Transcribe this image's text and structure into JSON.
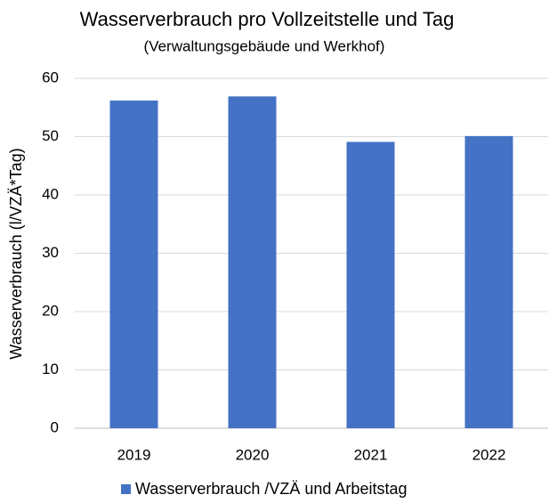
{
  "chart_data": {
    "type": "bar",
    "title": "Wasserverbrauch pro Vollzeitstelle und Tag",
    "subtitle": "(Verwaltungsgebäude und Werkhof)",
    "y_label": "Wasserverbrauch (l/VZÄ*Tag)",
    "categories": [
      "2019",
      "2020",
      "2021",
      "2022"
    ],
    "series": [
      {
        "name": "Wasserverbrauch /VZÄ und Arbeitstag",
        "color": "#4472c4",
        "values": [
          56.2,
          56.9,
          49.1,
          50.1
        ]
      }
    ],
    "ylim": [
      0,
      60
    ],
    "yticks": [
      0,
      10,
      20,
      30,
      40,
      50,
      60
    ],
    "grid": true,
    "legend": "bottom"
  }
}
